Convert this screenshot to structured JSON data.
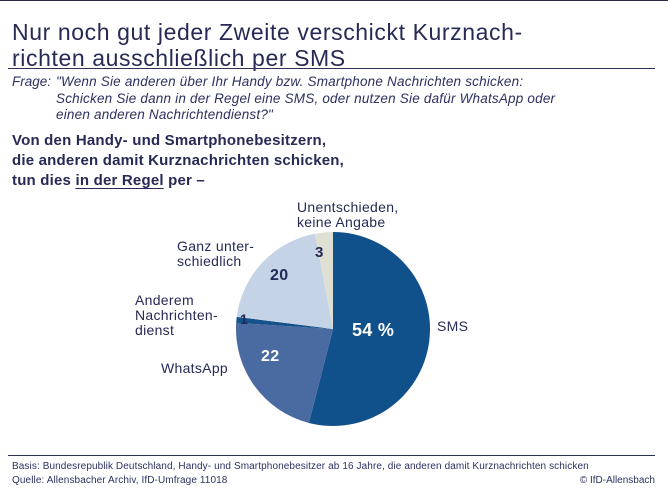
{
  "title": "Nur noch gut jeder Zweite verschickt Kurznach-\nrichten ausschließlich per SMS",
  "question": {
    "label": "Frage:",
    "text": "\"Wenn Sie anderen über Ihr Handy bzw. Smartphone Nachrichten schicken:\nSchicken Sie dann in der Regel eine SMS, oder nutzen Sie dafür WhatsApp oder\neinen anderen Nachrichtendienst?\""
  },
  "subtitle": {
    "pre": "Von den Handy- und Smartphonebesitzern,\ndie anderen damit Kurznachrichten schicken,\ntun dies ",
    "underlined": "in der Regel",
    "post": " per –"
  },
  "chart_data": {
    "type": "pie",
    "title": "Von den Handy- und Smartphonebesitzern, die anderen damit Kurznachrichten schicken, tun dies in der Regel per –",
    "unit": "percent",
    "start_angle_deg": 0,
    "direction": "clockwise",
    "total": 100,
    "slices": [
      {
        "name": "sms",
        "label": "SMS",
        "value": 54,
        "value_label": "54 %",
        "color": "#11518b"
      },
      {
        "name": "whatsapp",
        "label": "WhatsApp",
        "value": 22,
        "value_label": "22",
        "color": "#4a6ba1"
      },
      {
        "name": "anderer-nachrichtendienst",
        "label": "Anderem\nNachrichten-\ndienst",
        "value": 1,
        "value_label": "1",
        "color": "#15518b"
      },
      {
        "name": "ganz-unterschiedlich",
        "label": "Ganz unter-\nschiedlich",
        "value": 20,
        "value_label": "20",
        "color": "#c4d3e6"
      },
      {
        "name": "unentschieden",
        "label": "Unentschieden,\nkeine Angabe",
        "value": 3,
        "value_label": "3",
        "color": "#dfdfd3"
      }
    ]
  },
  "footer": {
    "basis": "Basis: Bundesrepublik Deutschland, Handy- und Smartphonebesitzer ab 16 Jahre, die anderen damit Kurznachrichten schicken",
    "quelle": "Quelle: Allensbacher Archiv, IfD-Umfrage 11018",
    "copyright": "© IfD-Allensbach"
  },
  "colors": {
    "text_navy": "#262a54",
    "rule": "#2e3258"
  }
}
